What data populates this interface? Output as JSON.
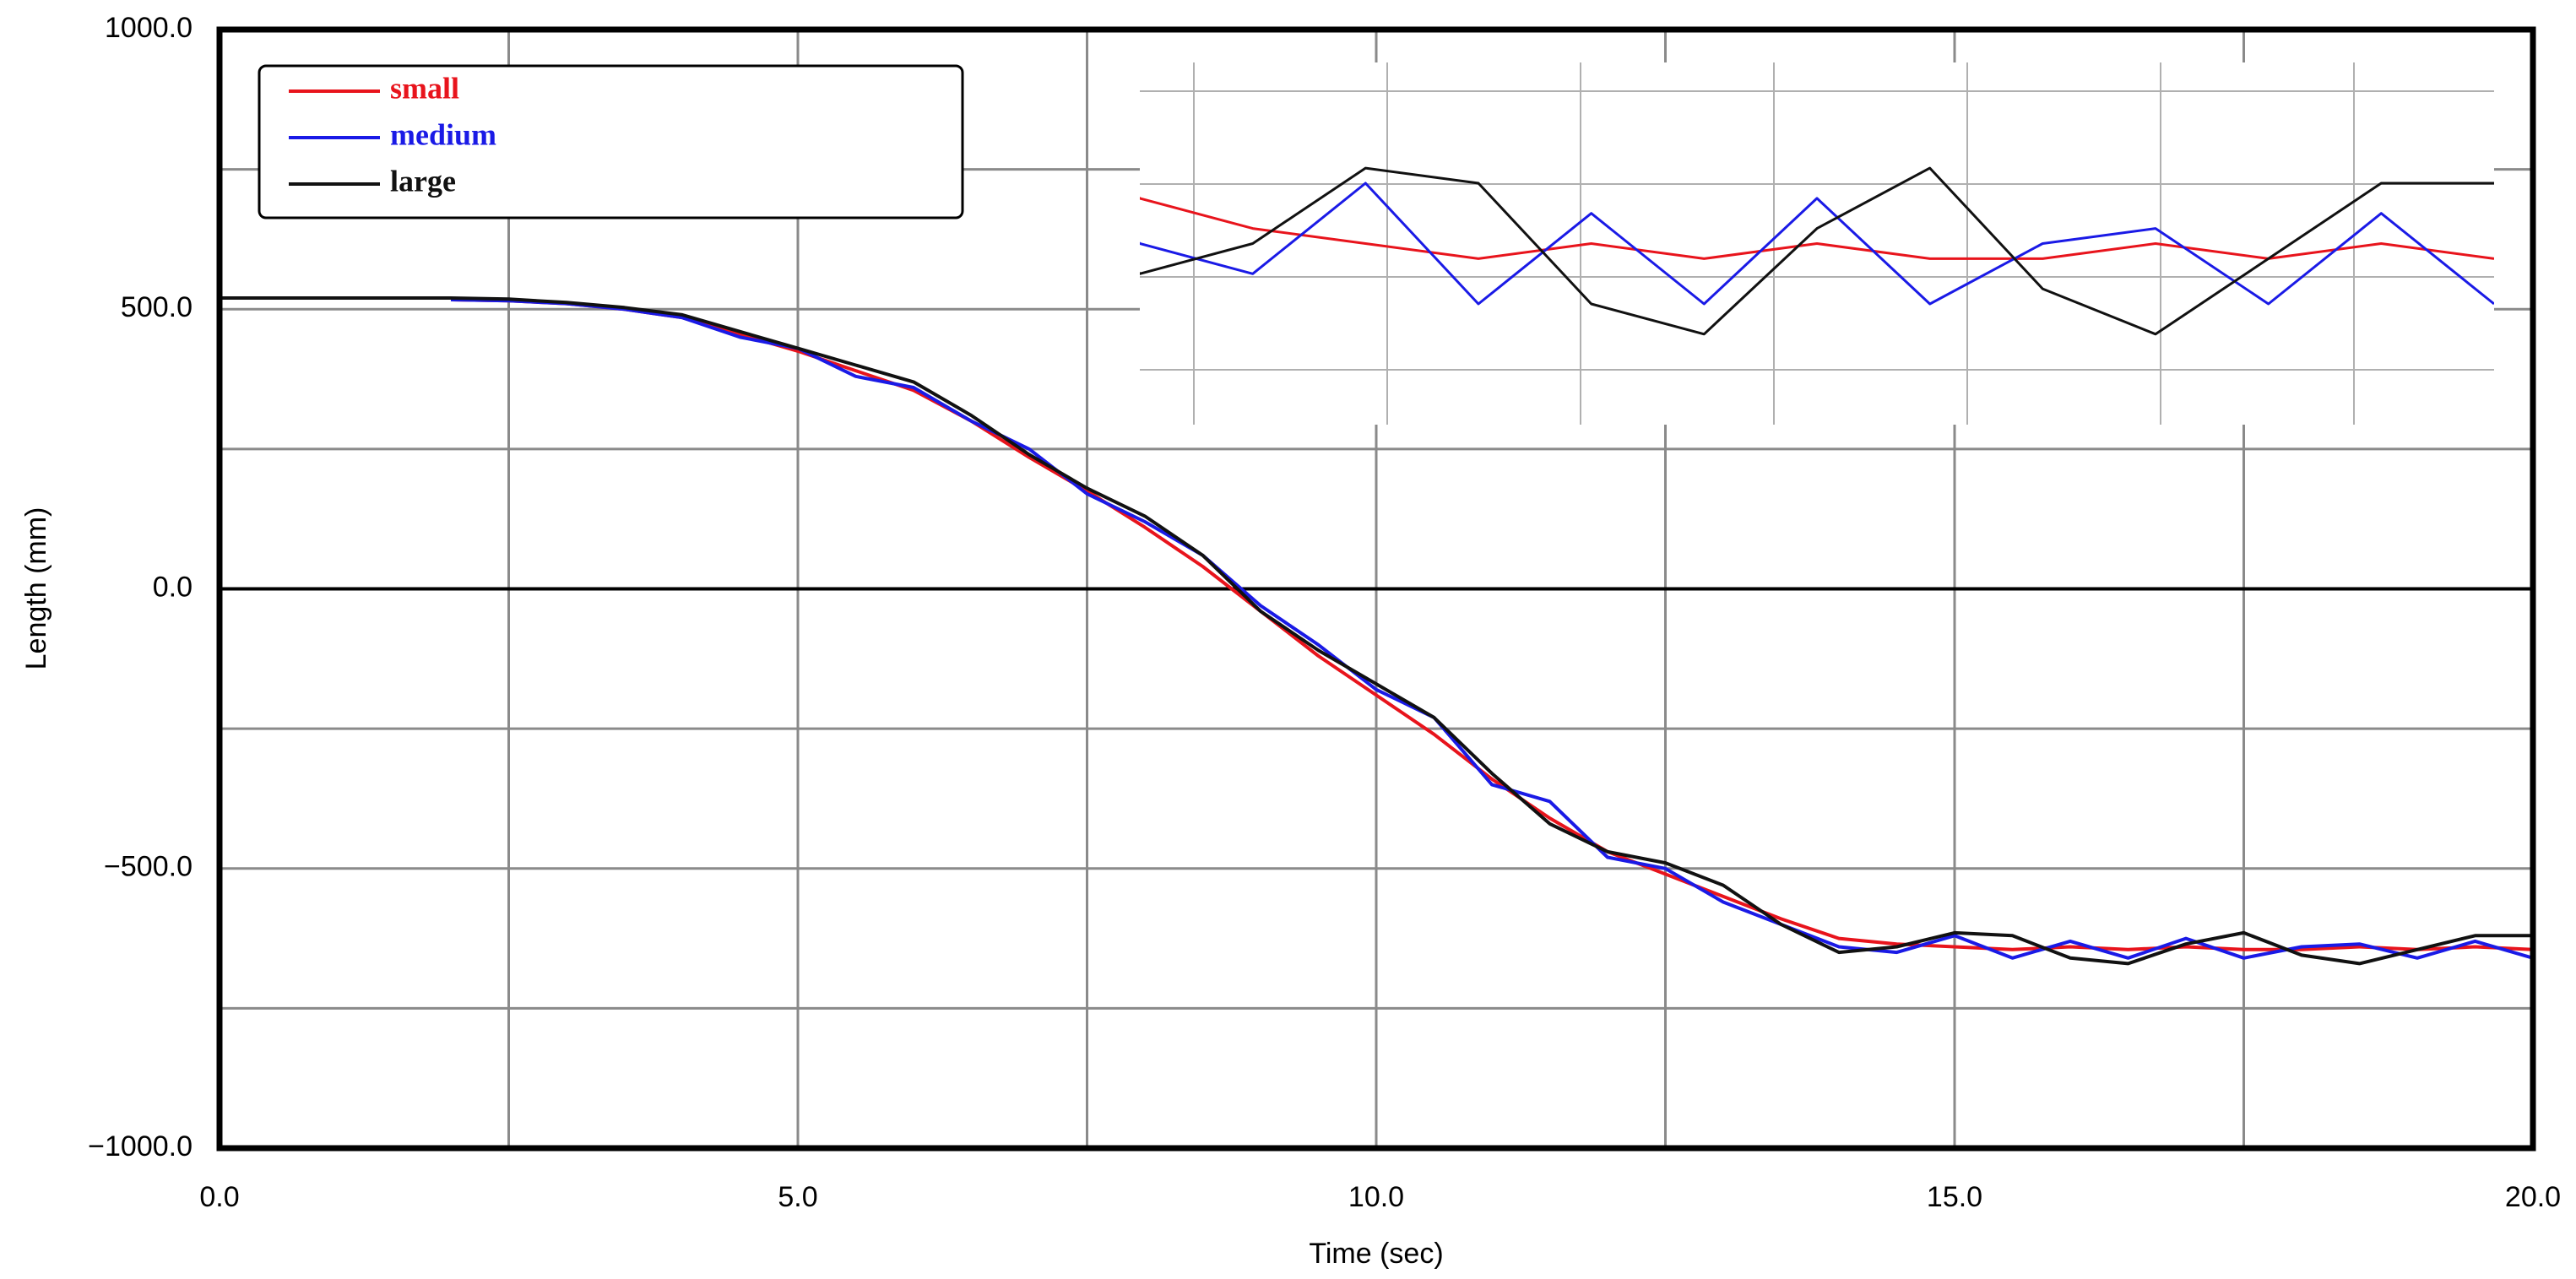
{
  "chart_data": {
    "type": "line",
    "xlabel": "Time (sec)",
    "ylabel": "Length (mm)",
    "xlim": [
      0,
      20
    ],
    "ylim": [
      -1000,
      1000
    ],
    "xticks": [
      {
        "value": 0,
        "label": "0.0"
      },
      {
        "value": 5,
        "label": "5.0"
      },
      {
        "value": 10,
        "label": "10.0"
      },
      {
        "value": 15,
        "label": "15.0"
      },
      {
        "value": 20,
        "label": "20.0"
      }
    ],
    "yticks": [
      {
        "value": 1000,
        "label": "1000.0"
      },
      {
        "value": 500,
        "label": "500.0"
      },
      {
        "value": 0,
        "label": "0.0"
      },
      {
        "value": -500,
        "label": "−500.0"
      },
      {
        "value": -1000,
        "label": "−1000.0"
      }
    ],
    "xminor": [
      2.5,
      7.5,
      12.5,
      17.5
    ],
    "yminor": [
      750,
      250,
      -250,
      -750
    ],
    "grid": true,
    "zero_line": true,
    "legend": "upper left",
    "inset": {
      "xlim": [
        14,
        20
      ],
      "ylim": [
        -700,
        -580
      ]
    },
    "x": [
      0,
      0.5,
      1,
      1.5,
      2,
      2.5,
      3,
      3.5,
      4,
      4.5,
      5,
      5.5,
      6,
      6.5,
      7,
      7.5,
      8,
      8.5,
      9,
      9.5,
      10,
      10.5,
      11,
      11.5,
      12,
      12.5,
      13,
      13.5,
      14,
      14.5,
      15,
      15.5,
      16,
      16.5,
      17,
      17.5,
      18,
      18.5,
      19,
      19.5,
      20
    ],
    "series": [
      {
        "name": "small",
        "color": "#e8141c",
        "values": [
          null,
          null,
          null,
          null,
          517,
          515,
          510,
          500,
          485,
          455,
          425,
          390,
          355,
          300,
          235,
          175,
          110,
          40,
          -40,
          -120,
          -190,
          -260,
          -340,
          -410,
          -470,
          -510,
          -550,
          -590,
          -625,
          -635,
          -640,
          -645,
          -640,
          -645,
          -640,
          -645,
          -645,
          -640,
          -645,
          -640,
          -645
        ]
      },
      {
        "name": "medium",
        "color": "#1a1ae6",
        "values": [
          null,
          null,
          null,
          null,
          517,
          515,
          510,
          500,
          485,
          450,
          430,
          380,
          360,
          300,
          250,
          170,
          120,
          60,
          -30,
          -100,
          -180,
          -230,
          -350,
          -380,
          -480,
          -500,
          -560,
          -600,
          -640,
          -650,
          -620,
          -660,
          -630,
          -660,
          -625,
          -660,
          -640,
          -635,
          -660,
          -630,
          -660
        ]
      },
      {
        "name": "large",
        "color": "#111111",
        "values": [
          520,
          520,
          520,
          520,
          520,
          518,
          512,
          503,
          490,
          460,
          430,
          400,
          370,
          310,
          240,
          180,
          130,
          60,
          -40,
          -110,
          -170,
          -230,
          -330,
          -420,
          -470,
          -490,
          -530,
          -600,
          -650,
          -640,
          -615,
          -620,
          -660,
          -670,
          -635,
          -615,
          -655,
          -670,
          -645,
          -620,
          -620
        ]
      }
    ]
  }
}
